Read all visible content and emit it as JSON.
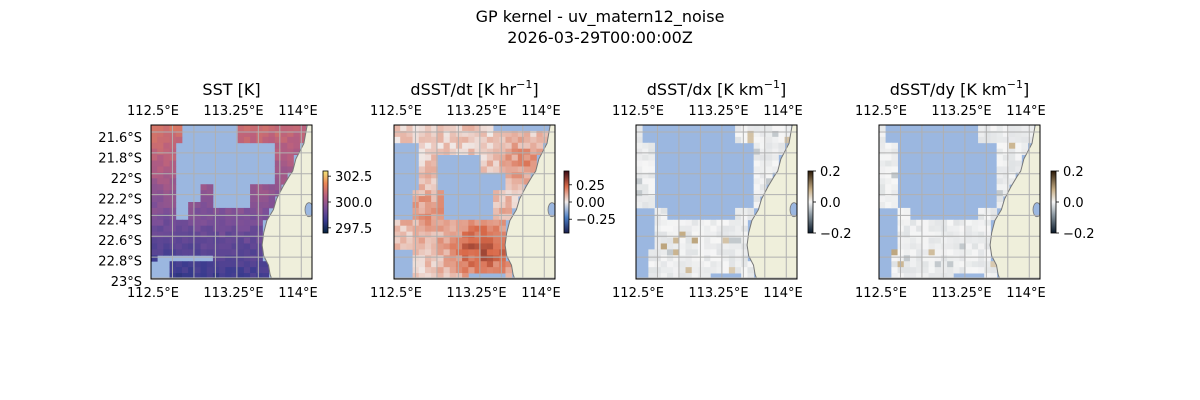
{
  "figure": {
    "title_line1": "GP kernel - uv_matern12_noise",
    "title_line2": "2026-03-29T00:00:00Z"
  },
  "colors": {
    "ocean_mask": "#9bb7e0",
    "land": "#efefdb",
    "coast": "#777777",
    "grid": "#b0b0b0"
  },
  "chart_data": [
    {
      "type": "heatmap",
      "title": "SST [K]",
      "title_sup": "",
      "title_tail": "",
      "colormap": "thermal",
      "xlim": [
        112.5,
        114.0
      ],
      "ylim": [
        -23.0,
        -21.5
      ],
      "x_ticks": [
        "112.5°E",
        "113.25°E",
        "114°E"
      ],
      "y_ticks": [
        "21.6°S",
        "21.8°S",
        "22°S",
        "22.2°S",
        "22.4°S",
        "22.6°S",
        "22.8°S",
        "23°S"
      ],
      "show_y_ticks": true,
      "colorbar": {
        "min": 297.0,
        "max": 303.0,
        "ticks": [
          "302.5",
          "300.0",
          "297.5"
        ]
      }
    },
    {
      "type": "heatmap",
      "title": "dSST/dt [K hr",
      "title_sup": "−1",
      "title_tail": "]",
      "colormap": "balance",
      "xlim": [
        112.5,
        114.0
      ],
      "ylim": [
        -23.0,
        -21.5
      ],
      "x_ticks": [
        "112.5°E",
        "113.25°E",
        "114°E"
      ],
      "y_ticks": [],
      "show_y_ticks": false,
      "colorbar": {
        "min": -0.45,
        "max": 0.45,
        "ticks": [
          "0.25",
          "0.00",
          "−0.25"
        ]
      }
    },
    {
      "type": "heatmap",
      "title": "dSST/dx [K km",
      "title_sup": "−1",
      "title_tail": "]",
      "colormap": "diff",
      "xlim": [
        112.5,
        114.0
      ],
      "ylim": [
        -23.0,
        -21.5
      ],
      "x_ticks": [
        "112.5°E",
        "113.25°E",
        "114°E"
      ],
      "y_ticks": [],
      "show_y_ticks": false,
      "colorbar": {
        "min": -0.2,
        "max": 0.2,
        "ticks": [
          "0.2",
          "0.0",
          "−0.2"
        ]
      }
    },
    {
      "type": "heatmap",
      "title": "dSST/dy [K km",
      "title_sup": "−1",
      "title_tail": "]",
      "colormap": "diff",
      "xlim": [
        112.5,
        114.0
      ],
      "ylim": [
        -23.0,
        -21.5
      ],
      "x_ticks": [
        "112.5°E",
        "113.25°E",
        "114°E"
      ],
      "y_ticks": [],
      "show_y_ticks": false,
      "colorbar": {
        "min": -0.2,
        "max": 0.2,
        "ticks": [
          "0.2",
          "0.0",
          "−0.2"
        ]
      }
    }
  ]
}
